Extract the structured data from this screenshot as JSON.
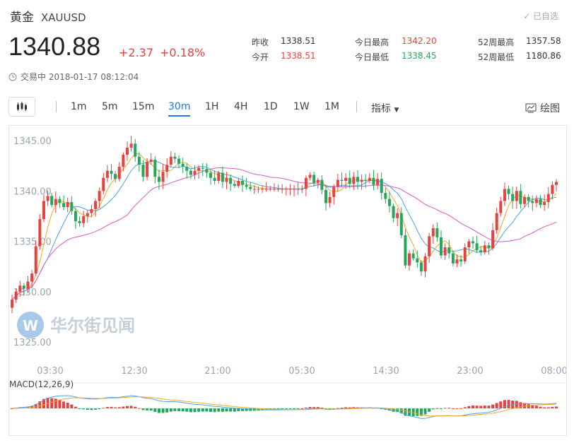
{
  "header": {
    "name": "黄金",
    "symbol": "XAUUSD",
    "watch_label": "已自选",
    "price": "1340.88",
    "change": "+2.37",
    "change_pct": "+0.18%",
    "status_time": "交易中 2018-01-17 08:12:04"
  },
  "stats": {
    "prev_close_label": "昨收",
    "prev_close": "1338.51",
    "open_label": "今开",
    "open": "1338.51",
    "high_label": "今日最高",
    "high": "1342.20",
    "low_label": "今日最低",
    "low": "1338.45",
    "w52_high_label": "52周最高",
    "w52_high": "1357.58",
    "w52_low_label": "52周最低",
    "w52_low": "1180.86"
  },
  "toolbar": {
    "periods": [
      "1m",
      "5m",
      "15m",
      "30m",
      "1H",
      "4H",
      "1D",
      "1W",
      "1M"
    ],
    "active_period": "30m",
    "indicator_label": "指标",
    "draw_label": "绘图"
  },
  "watermark": "华尔街见闻",
  "colors": {
    "up": "#e64340",
    "down": "#26a65b",
    "accent": "#1e7be0",
    "ma_orange": "#f5a623",
    "ma_blue": "#4aa3df",
    "ma_pink": "#e056c8"
  },
  "chart_data": {
    "type": "candlestick",
    "y_ticks": [
      "1345.00",
      "1340.00",
      "1335.00",
      "1330.00",
      "1325.00"
    ],
    "ylim": [
      1325,
      1345
    ],
    "x_ticks": [
      "03:30",
      "12:30",
      "21:00",
      "05:30",
      "14:30",
      "23:00",
      "08:00"
    ],
    "macd_label": "MACD(12,26,9)",
    "closes": [
      1329.2,
      1330.0,
      1330.6,
      1330.3,
      1331.0,
      1331.8,
      1334.5,
      1337.2,
      1339.0,
      1339.5,
      1338.6,
      1339.2,
      1338.8,
      1338.4,
      1338.9,
      1338.0,
      1337.0,
      1336.8,
      1337.5,
      1337.8,
      1338.2,
      1339.0,
      1340.0,
      1341.3,
      1342.0,
      1341.7,
      1341.2,
      1342.4,
      1343.6,
      1344.3,
      1344.7,
      1343.4,
      1342.6,
      1341.4,
      1342.9,
      1343.1,
      1341.4,
      1340.9,
      1341.9,
      1342.6,
      1343.4,
      1343.2,
      1342.7,
      1342.4,
      1342.0,
      1341.6,
      1342.0,
      1342.3,
      1342.2,
      1341.8,
      1341.3,
      1341.0,
      1341.8,
      1340.9,
      1341.3,
      1340.7,
      1340.5,
      1341.0,
      1340.6,
      1340.4,
      1340.2,
      1340.2,
      1340.2,
      1340.2,
      1340.2,
      1340.2,
      1340.2,
      1340.2,
      1340.2,
      1340.2,
      1340.2,
      1340.2,
      1340.2,
      1340.2,
      1341.3,
      1341.6,
      1340.8,
      1341.1,
      1340.1,
      1338.8,
      1339.4,
      1340.4,
      1341.1,
      1341.0,
      1341.3,
      1340.7,
      1341.4,
      1340.9,
      1341.1,
      1341.0,
      1341.3,
      1340.6,
      1341.2,
      1339.8,
      1339.2,
      1338.5,
      1337.3,
      1337.8,
      1335.6,
      1332.6,
      1333.8,
      1333.3,
      1332.9,
      1332.0,
      1333.5,
      1335.5,
      1336.3,
      1335.4,
      1333.6,
      1334.4,
      1333.8,
      1332.8,
      1333.2,
      1333.0,
      1334.4,
      1335.0,
      1334.8,
      1334.1,
      1333.9,
      1334.6,
      1334.3,
      1336.1,
      1337.8,
      1339.0,
      1340.2,
      1339.7,
      1339.0,
      1340.0,
      1338.7,
      1339.4,
      1339.0,
      1338.8,
      1339.2,
      1338.6,
      1338.9,
      1339.7,
      1340.6,
      1340.9
    ]
  }
}
